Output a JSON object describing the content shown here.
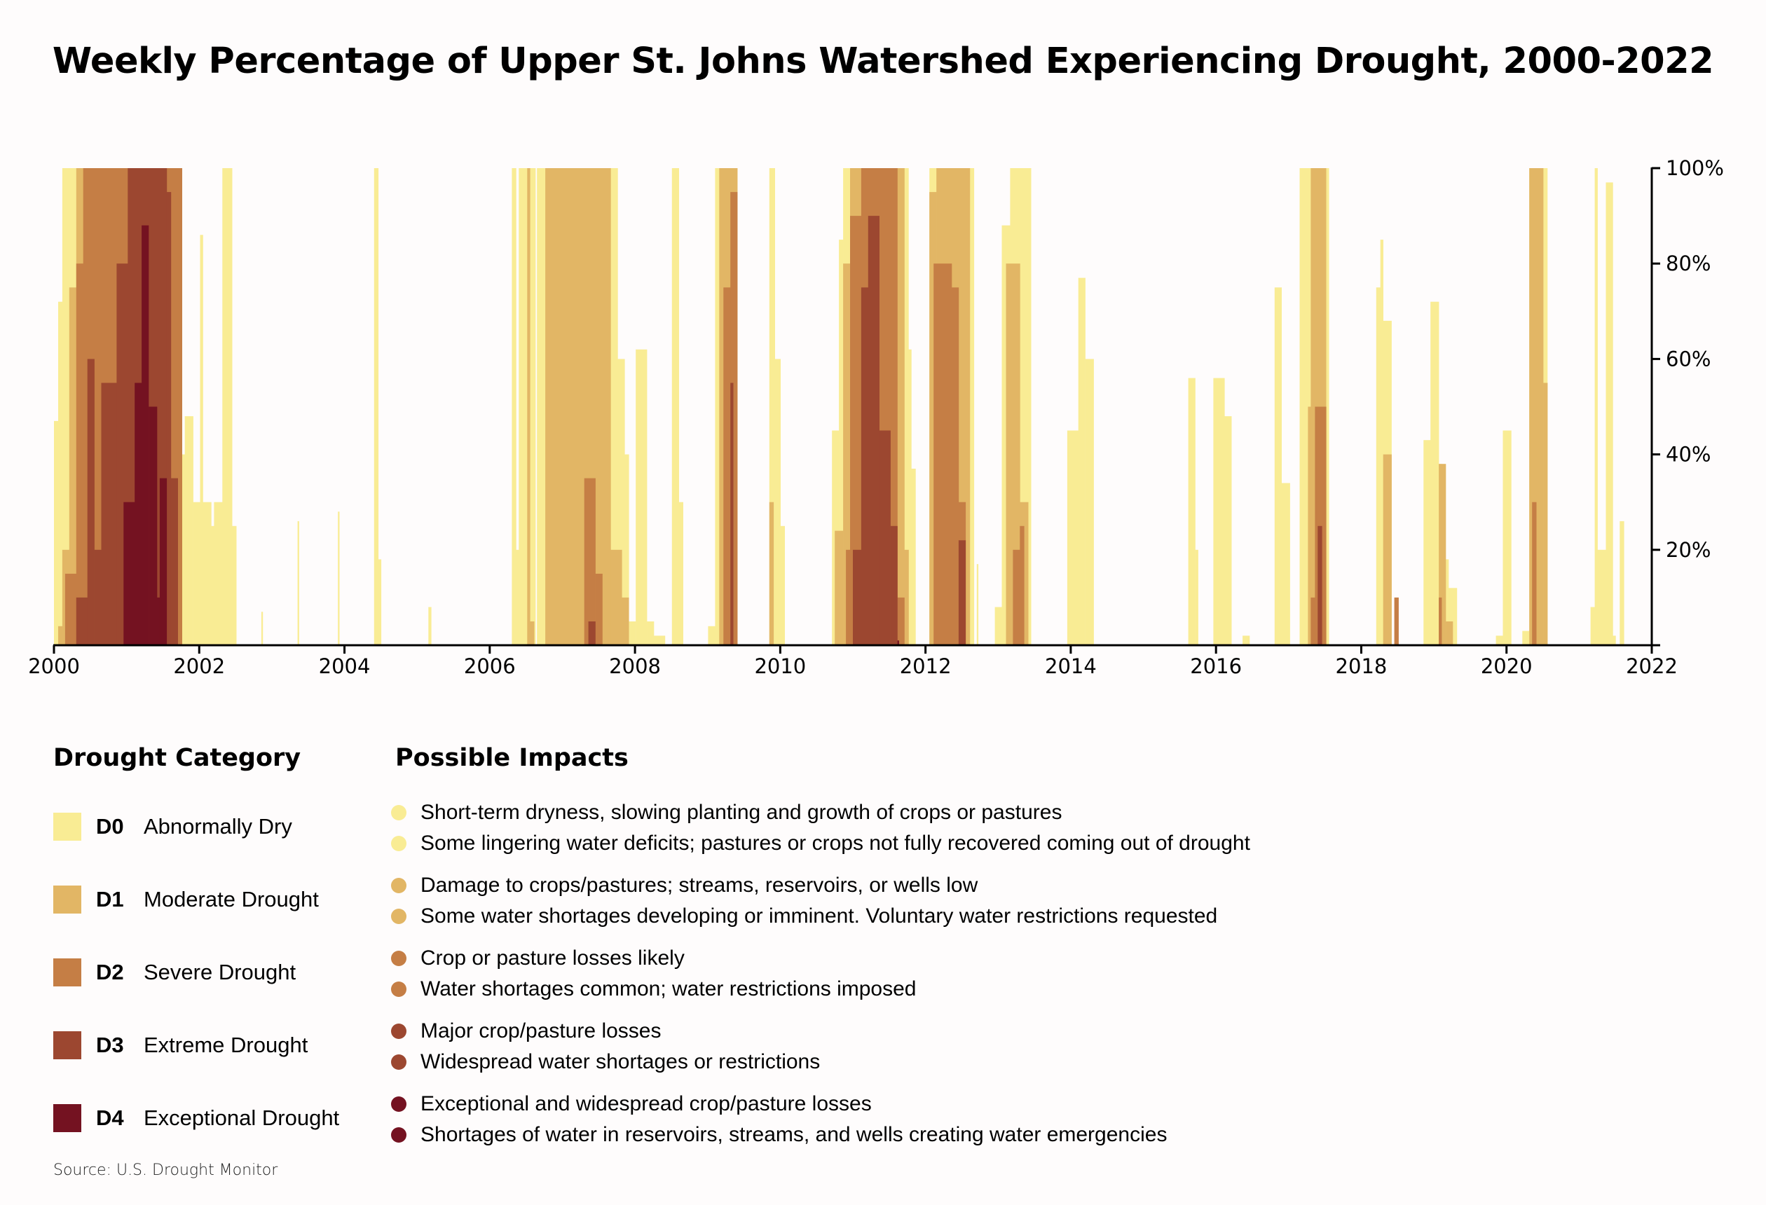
{
  "title": "Weekly Percentage of Upper St. Johns Watershed Experiencing Drought, 2000-2022",
  "legend": {
    "category_title": "Drought Category",
    "impacts_title": "Possible Impacts",
    "categories": [
      {
        "code": "D0",
        "name": "Abnormally Dry",
        "color": "#f9ec94",
        "impacts": [
          "Short-term dryness, slowing planting and growth of crops or pastures",
          "Some lingering water deficits; pastures or crops not fully recovered coming out of drought"
        ]
      },
      {
        "code": "D1",
        "name": "Moderate Drought",
        "color": "#e2b665",
        "impacts": [
          "Damage to crops/pastures; streams, reservoirs, or wells low",
          "Some water shortages developing or imminent. Voluntary water restrictions requested"
        ]
      },
      {
        "code": "D2",
        "name": "Severe Drought",
        "color": "#c57e45",
        "impacts": [
          "Crop or pasture losses likely",
          "Water shortages common; water restrictions imposed"
        ]
      },
      {
        "code": "D3",
        "name": "Extreme Drought",
        "color": "#9c4730",
        "impacts": [
          "Major crop/pasture losses",
          "Widespread water shortages or restrictions"
        ]
      },
      {
        "code": "D4",
        "name": "Exceptional Drought",
        "color": "#741221",
        "impacts": [
          "Exceptional and widespread crop/pasture losses",
          "Shortages of water in reservoirs, streams, and wells creating water emergencies"
        ]
      }
    ]
  },
  "source": "Source: U.S. Drought Monitor",
  "chart_data": {
    "type": "area",
    "title": "Weekly Percentage of Upper St. Johns Watershed Experiencing Drought, 2000-2022",
    "xlabel": "",
    "ylabel": "",
    "x_range": [
      2000,
      2022
    ],
    "x_ticks": [
      "2000",
      "2002",
      "2004",
      "2006",
      "2008",
      "2010",
      "2012",
      "2014",
      "2016",
      "2018",
      "2020",
      "2022"
    ],
    "y_range": [
      0,
      100
    ],
    "y_ticks": [
      "20%",
      "40%",
      "60%",
      "80%",
      "100%"
    ],
    "y_axis_side": "right",
    "grid": false,
    "value_meaning": "percent of area in category or worse (cumulative), weekly; keyframes as [year, percent] held until next keyframe",
    "series": [
      {
        "name": "D0",
        "keyframes": [
          [
            2000.0,
            47
          ],
          [
            2000.05,
            72
          ],
          [
            2000.1,
            100
          ],
          [
            2001.7,
            100
          ],
          [
            2001.73,
            40
          ],
          [
            2001.8,
            48
          ],
          [
            2001.9,
            30
          ],
          [
            2002.0,
            86
          ],
          [
            2002.05,
            30
          ],
          [
            2002.15,
            25
          ],
          [
            2002.2,
            30
          ],
          [
            2002.3,
            100
          ],
          [
            2002.45,
            25
          ],
          [
            2002.5,
            0
          ],
          [
            2002.85,
            7
          ],
          [
            2002.87,
            0
          ],
          [
            2003.35,
            26
          ],
          [
            2003.37,
            0
          ],
          [
            2003.9,
            28
          ],
          [
            2003.92,
            0
          ],
          [
            2004.4,
            100
          ],
          [
            2004.45,
            18
          ],
          [
            2004.5,
            0
          ],
          [
            2005.15,
            8
          ],
          [
            2005.18,
            0
          ],
          [
            2006.3,
            100
          ],
          [
            2006.35,
            20
          ],
          [
            2006.4,
            100
          ],
          [
            2006.6,
            100
          ],
          [
            2006.62,
            0
          ],
          [
            2006.65,
            100
          ],
          [
            2007.7,
            100
          ],
          [
            2007.75,
            60
          ],
          [
            2007.85,
            40
          ],
          [
            2007.9,
            5
          ],
          [
            2008.0,
            62
          ],
          [
            2008.15,
            5
          ],
          [
            2008.25,
            2
          ],
          [
            2008.4,
            0
          ],
          [
            2008.5,
            100
          ],
          [
            2008.6,
            30
          ],
          [
            2008.65,
            0
          ],
          [
            2008.75,
            0
          ],
          [
            2009.0,
            4
          ],
          [
            2009.1,
            100
          ],
          [
            2009.3,
            100
          ],
          [
            2009.4,
            0
          ],
          [
            2009.85,
            100
          ],
          [
            2009.92,
            60
          ],
          [
            2010.0,
            25
          ],
          [
            2010.05,
            0
          ],
          [
            2010.7,
            45
          ],
          [
            2010.8,
            85
          ],
          [
            2010.85,
            100
          ],
          [
            2011.7,
            100
          ],
          [
            2011.75,
            62
          ],
          [
            2011.8,
            37
          ],
          [
            2011.85,
            0
          ],
          [
            2012.05,
            100
          ],
          [
            2012.6,
            100
          ],
          [
            2012.65,
            0
          ],
          [
            2012.7,
            17
          ],
          [
            2012.72,
            0
          ],
          [
            2012.95,
            8
          ],
          [
            2013.05,
            88
          ],
          [
            2013.15,
            100
          ],
          [
            2013.3,
            100
          ],
          [
            2013.45,
            0
          ],
          [
            2013.95,
            45
          ],
          [
            2014.1,
            77
          ],
          [
            2014.2,
            60
          ],
          [
            2014.3,
            0
          ],
          [
            2015.6,
            56
          ],
          [
            2015.7,
            20
          ],
          [
            2015.75,
            0
          ],
          [
            2015.95,
            56
          ],
          [
            2016.1,
            48
          ],
          [
            2016.2,
            0
          ],
          [
            2016.35,
            2
          ],
          [
            2016.45,
            0
          ],
          [
            2016.8,
            75
          ],
          [
            2016.9,
            34
          ],
          [
            2017.0,
            0
          ],
          [
            2017.15,
            100
          ],
          [
            2017.5,
            100
          ],
          [
            2017.55,
            0
          ],
          [
            2018.2,
            75
          ],
          [
            2018.25,
            85
          ],
          [
            2018.3,
            68
          ],
          [
            2018.4,
            0
          ],
          [
            2018.85,
            43
          ],
          [
            2018.95,
            72
          ],
          [
            2019.05,
            38
          ],
          [
            2019.1,
            18
          ],
          [
            2019.2,
            12
          ],
          [
            2019.3,
            0
          ],
          [
            2019.85,
            2
          ],
          [
            2019.95,
            45
          ],
          [
            2020.05,
            0
          ],
          [
            2020.2,
            3
          ],
          [
            2020.3,
            100
          ],
          [
            2020.5,
            100
          ],
          [
            2020.55,
            0
          ],
          [
            2021.15,
            8
          ],
          [
            2021.2,
            100
          ],
          [
            2021.25,
            20
          ],
          [
            2021.35,
            97
          ],
          [
            2021.45,
            2
          ],
          [
            2021.5,
            0
          ],
          [
            2021.55,
            26
          ],
          [
            2021.6,
            0
          ],
          [
            2022.0,
            0
          ]
        ]
      },
      {
        "name": "D1",
        "keyframes": [
          [
            2000.0,
            0
          ],
          [
            2000.05,
            4
          ],
          [
            2000.1,
            20
          ],
          [
            2000.2,
            75
          ],
          [
            2000.3,
            100
          ],
          [
            2001.7,
            100
          ],
          [
            2001.75,
            0
          ],
          [
            2006.35,
            0
          ],
          [
            2006.5,
            100
          ],
          [
            2006.55,
            5
          ],
          [
            2006.6,
            0
          ],
          [
            2006.75,
            100
          ],
          [
            2007.6,
            100
          ],
          [
            2007.65,
            20
          ],
          [
            2007.8,
            10
          ],
          [
            2007.9,
            0
          ],
          [
            2009.1,
            0
          ],
          [
            2009.15,
            100
          ],
          [
            2009.35,
            100
          ],
          [
            2009.4,
            0
          ],
          [
            2009.85,
            30
          ],
          [
            2009.9,
            0
          ],
          [
            2010.75,
            24
          ],
          [
            2010.85,
            80
          ],
          [
            2010.95,
            100
          ],
          [
            2011.65,
            100
          ],
          [
            2011.7,
            20
          ],
          [
            2011.75,
            0
          ],
          [
            2012.05,
            95
          ],
          [
            2012.15,
            100
          ],
          [
            2012.55,
            100
          ],
          [
            2012.6,
            0
          ],
          [
            2013.1,
            80
          ],
          [
            2013.2,
            80
          ],
          [
            2013.3,
            30
          ],
          [
            2013.4,
            0
          ],
          [
            2017.25,
            50
          ],
          [
            2017.3,
            100
          ],
          [
            2017.45,
            100
          ],
          [
            2017.5,
            0
          ],
          [
            2018.3,
            40
          ],
          [
            2018.4,
            0
          ],
          [
            2019.05,
            38
          ],
          [
            2019.15,
            5
          ],
          [
            2019.25,
            0
          ],
          [
            2020.25,
            0
          ],
          [
            2020.3,
            100
          ],
          [
            2020.5,
            55
          ],
          [
            2020.55,
            0
          ],
          [
            2022.0,
            0
          ]
        ]
      },
      {
        "name": "D2",
        "keyframes": [
          [
            2000.0,
            0
          ],
          [
            2000.15,
            15
          ],
          [
            2000.3,
            80
          ],
          [
            2000.4,
            100
          ],
          [
            2001.7,
            100
          ],
          [
            2001.75,
            0
          ],
          [
            2007.1,
            0
          ],
          [
            2007.3,
            35
          ],
          [
            2007.45,
            15
          ],
          [
            2007.55,
            0
          ],
          [
            2009.15,
            0
          ],
          [
            2009.2,
            75
          ],
          [
            2009.3,
            95
          ],
          [
            2009.4,
            0
          ],
          [
            2010.9,
            20
          ],
          [
            2010.95,
            90
          ],
          [
            2011.1,
            100
          ],
          [
            2011.5,
            100
          ],
          [
            2011.6,
            10
          ],
          [
            2011.7,
            0
          ],
          [
            2012.1,
            80
          ],
          [
            2012.35,
            75
          ],
          [
            2012.45,
            30
          ],
          [
            2012.55,
            0
          ],
          [
            2013.2,
            20
          ],
          [
            2013.3,
            25
          ],
          [
            2013.35,
            0
          ],
          [
            2017.3,
            10
          ],
          [
            2017.35,
            50
          ],
          [
            2017.45,
            50
          ],
          [
            2017.5,
            0
          ],
          [
            2018.45,
            10
          ],
          [
            2018.5,
            0
          ],
          [
            2019.05,
            10
          ],
          [
            2019.1,
            0
          ],
          [
            2020.35,
            30
          ],
          [
            2020.4,
            0
          ],
          [
            2022.0,
            0
          ]
        ]
      },
      {
        "name": "D3",
        "keyframes": [
          [
            2000.0,
            0
          ],
          [
            2000.3,
            10
          ],
          [
            2000.45,
            60
          ],
          [
            2000.55,
            20
          ],
          [
            2000.65,
            55
          ],
          [
            2000.85,
            80
          ],
          [
            2001.0,
            100
          ],
          [
            2001.55,
            95
          ],
          [
            2001.6,
            35
          ],
          [
            2001.7,
            0
          ],
          [
            2007.35,
            5
          ],
          [
            2007.45,
            0
          ],
          [
            2009.3,
            55
          ],
          [
            2009.35,
            0
          ],
          [
            2011.0,
            20
          ],
          [
            2011.1,
            75
          ],
          [
            2011.2,
            90
          ],
          [
            2011.35,
            45
          ],
          [
            2011.5,
            25
          ],
          [
            2011.6,
            0
          ],
          [
            2012.45,
            22
          ],
          [
            2012.55,
            0
          ],
          [
            2017.4,
            25
          ],
          [
            2017.45,
            0
          ],
          [
            2022.0,
            0
          ]
        ]
      },
      {
        "name": "D4",
        "keyframes": [
          [
            2000.0,
            0
          ],
          [
            2000.95,
            30
          ],
          [
            2001.1,
            55
          ],
          [
            2001.2,
            88
          ],
          [
            2001.3,
            50
          ],
          [
            2001.4,
            10
          ],
          [
            2001.45,
            35
          ],
          [
            2001.55,
            0
          ],
          [
            2011.6,
            1
          ],
          [
            2011.62,
            0
          ],
          [
            2022.0,
            0
          ]
        ]
      }
    ]
  }
}
